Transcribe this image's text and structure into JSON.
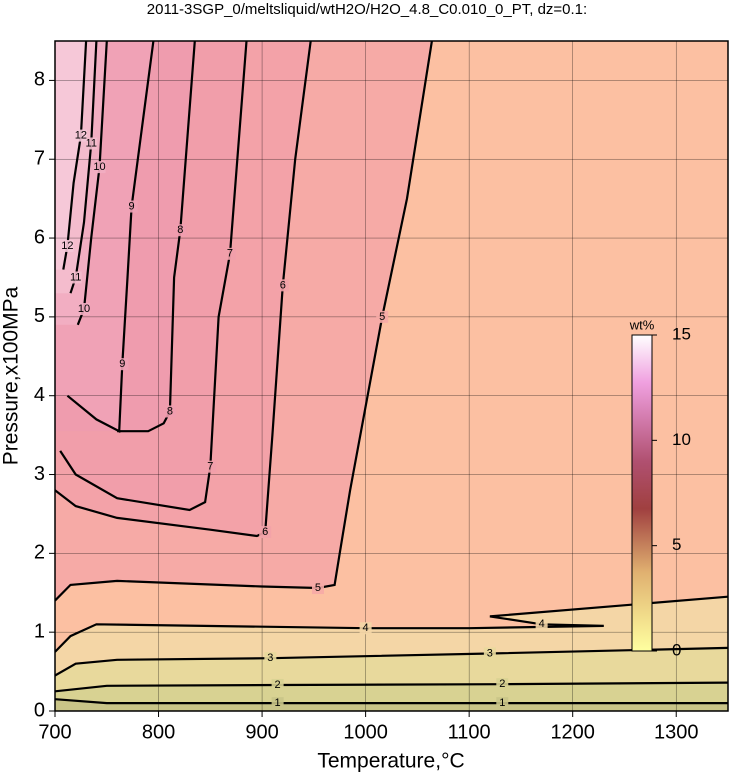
{
  "chart_data": {
    "type": "contour",
    "title": "2011-3SGP_0/meltsliquid/wtH2O/H2O_4.8_C0.010_0_PT, dz=0.1:",
    "x_label": "Temperature,°C",
    "y_label": "Pressure,x100MPa",
    "xlim": [
      700,
      1350
    ],
    "ylim": [
      0,
      8.5
    ],
    "xticks": [
      700,
      800,
      900,
      1000,
      1100,
      1200,
      1300
    ],
    "yticks": [
      0,
      1,
      2,
      3,
      4,
      5,
      6,
      7,
      8
    ],
    "grid": true,
    "background_color": "#fcc0a2",
    "contours": [
      {
        "level": 1,
        "x": [
          700,
          750,
          915,
          1132,
          1350
        ],
        "y": [
          0.15,
          0.1,
          0.1,
          0.1,
          0.1
        ],
        "fill": "#c9c488",
        "fill_side": "below"
      },
      {
        "level": 2,
        "x": [
          700,
          750,
          915,
          1132,
          1350
        ],
        "y": [
          0.25,
          0.32,
          0.33,
          0.34,
          0.36
        ],
        "fill": "#d8d292",
        "fill_side": "below"
      },
      {
        "level": 3,
        "x": [
          700,
          720,
          760,
          908,
          1120,
          1350
        ],
        "y": [
          0.45,
          0.6,
          0.65,
          0.67,
          0.73,
          0.8
        ],
        "fill": "#e8d99c",
        "fill_side": "below"
      },
      {
        "level": 4,
        "x": [
          700,
          715,
          740,
          1000,
          1100,
          1230,
          1170,
          1120,
          1350
        ],
        "y": [
          0.75,
          0.95,
          1.1,
          1.05,
          1.05,
          1.08,
          1.1,
          1.2,
          1.45
        ],
        "fill": "#f4d6a6",
        "fill_side": "below"
      },
      {
        "level": 5,
        "x": [
          700,
          715,
          760,
          900,
          954,
          970,
          975,
          985,
          1016,
          1040,
          1064
        ],
        "y": [
          1.4,
          1.6,
          1.65,
          1.58,
          1.56,
          1.6,
          2.0,
          2.8,
          5,
          6.5,
          8.5
        ],
        "fill": "#f6aaa6",
        "fill_side": "above"
      },
      {
        "level": 6,
        "x": [
          700,
          720,
          760,
          850,
          895,
          903,
          910,
          920,
          932,
          947
        ],
        "y": [
          2.8,
          2.6,
          2.45,
          2.3,
          2.22,
          2.27,
          3.5,
          5.4,
          7,
          8.5
        ],
        "fill": "#f3a2a8",
        "fill_side": "above"
      },
      {
        "level": 7,
        "x": [
          705,
          720,
          760,
          830,
          845,
          850,
          858,
          869,
          885
        ],
        "y": [
          3.3,
          3.0,
          2.7,
          2.55,
          2.65,
          3.1,
          5,
          5.8,
          8.5
        ],
        "fill": "#f19eaa",
        "fill_side": "above"
      },
      {
        "level": 8,
        "x": [
          760,
          790,
          805,
          811,
          815,
          821,
          835
        ],
        "y": [
          3.55,
          3.55,
          3.65,
          3.8,
          5.5,
          6.1,
          8.5
        ],
        "fill": "#ef9cae",
        "fill_side": "above"
      },
      {
        "level": 9,
        "x": [
          712,
          740,
          762,
          765,
          770,
          774,
          785,
          795
        ],
        "y": [
          4.0,
          3.7,
          3.55,
          4.4,
          5.5,
          6.4,
          7.5,
          8.5
        ],
        "fill": "#f0a2b6",
        "fill_side": "above"
      },
      {
        "level": 10,
        "x": [
          722,
          728,
          735,
          743,
          750
        ],
        "y": [
          4.9,
          5.1,
          6,
          6.9,
          8.5
        ],
        "fill": "#f2aec2",
        "fill_side": "above"
      },
      {
        "level": 11,
        "x": [
          715,
          720,
          728,
          735,
          740
        ],
        "y": [
          5.3,
          5.5,
          6.2,
          7.2,
          8.5
        ],
        "fill": "#f4bccd",
        "fill_side": "above"
      },
      {
        "level": 12,
        "x": [
          708,
          712,
          718,
          725,
          730
        ],
        "y": [
          5.6,
          5.9,
          6.7,
          7.3,
          8.5
        ],
        "fill": "#f6c8d8",
        "fill_side": "above"
      }
    ],
    "colorbar": {
      "label": "wt%",
      "lim": [
        0,
        15
      ],
      "ticks": [
        0,
        5,
        10,
        15
      ]
    }
  }
}
